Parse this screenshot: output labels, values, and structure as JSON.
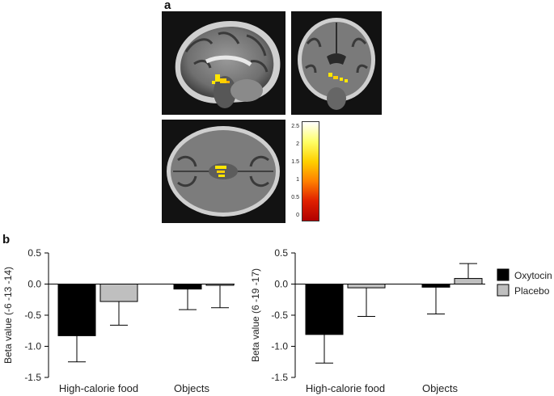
{
  "panels": {
    "a_label": "a",
    "b_label": "b"
  },
  "brain_images": [
    {
      "view": "sagittal",
      "activation_color": "#ffe600"
    },
    {
      "view": "coronal",
      "activation_color": "#ffe600"
    },
    {
      "view": "axial",
      "activation_color": "#ffe600"
    }
  ],
  "colorbar": {
    "ticks": [
      "2.5",
      "2",
      "1.5",
      "1",
      "0.5",
      "0"
    ],
    "colors": [
      "#ffffff",
      "#ffff66",
      "#ffd000",
      "#ff8000",
      "#e02000",
      "#b00000"
    ]
  },
  "legend": {
    "items": [
      {
        "label": "Oxytocin",
        "color": "#000000"
      },
      {
        "label": "Placebo",
        "color": "#bfbfbf"
      }
    ]
  },
  "chart_data": [
    {
      "type": "bar",
      "ylabel": "Beta value  (-6 -13 -14)",
      "categories": [
        "High-calorie food",
        "Objects"
      ],
      "ylim": [
        -1.5,
        0.5
      ],
      "yticks": [
        "0.5",
        "0.0",
        "-0.5",
        "-1.0",
        "-1.5"
      ],
      "series": [
        {
          "name": "Oxytocin",
          "values": [
            -0.83,
            -0.08
          ],
          "errors": [
            0.42,
            0.33
          ],
          "color": "#000000"
        },
        {
          "name": "Placebo",
          "values": [
            -0.28,
            -0.02
          ],
          "errors": [
            0.38,
            0.36
          ],
          "color": "#bfbfbf"
        }
      ]
    },
    {
      "type": "bar",
      "ylabel": "Beta value  (6 -19 -17)",
      "categories": [
        "High-calorie food",
        "Objects"
      ],
      "ylim": [
        -1.5,
        0.5
      ],
      "yticks": [
        "0.5",
        "0.0",
        "-0.5",
        "-1.0",
        "-1.5"
      ],
      "series": [
        {
          "name": "Oxytocin",
          "values": [
            -0.81,
            -0.05
          ],
          "errors": [
            0.46,
            0.43
          ],
          "color": "#000000"
        },
        {
          "name": "Placebo",
          "values": [
            -0.06,
            0.09
          ],
          "errors": [
            0.46,
            0.24
          ],
          "color": "#bfbfbf"
        }
      ]
    }
  ]
}
